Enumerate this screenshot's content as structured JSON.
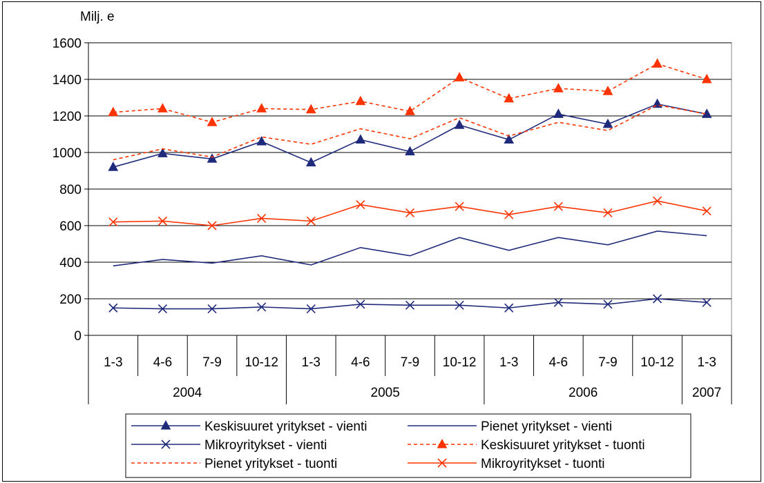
{
  "chart_data": {
    "type": "line",
    "ylabel": "Milj. e",
    "ylim": [
      0,
      1600
    ],
    "yticks": [
      0,
      200,
      400,
      600,
      800,
      1000,
      1200,
      1400,
      1600
    ],
    "categories": [
      "1-3",
      "4-6",
      "7-9",
      "10-12",
      "1-3",
      "4-6",
      "7-9",
      "10-12",
      "1-3",
      "4-6",
      "7-9",
      "10-12",
      "1-3"
    ],
    "year_groups": [
      {
        "label": "2004",
        "count": 4
      },
      {
        "label": "2005",
        "count": 4
      },
      {
        "label": "2006",
        "count": 4
      },
      {
        "label": "2007",
        "count": 1
      }
    ],
    "grid": true,
    "legend_position": "bottom",
    "series": [
      {
        "name": "Keskisuuret yritykset - vienti",
        "color": "#1f2a7a",
        "dash": "solid",
        "marker": "triangle",
        "values": [
          920,
          995,
          965,
          1060,
          945,
          1070,
          1005,
          1150,
          1070,
          1210,
          1155,
          1265,
          1210
        ]
      },
      {
        "name": "Pienet yritykset - vienti",
        "color": "#1f2a7a",
        "dash": "solid",
        "marker": "none",
        "values": [
          380,
          415,
          395,
          435,
          385,
          480,
          435,
          535,
          465,
          535,
          495,
          570,
          545
        ]
      },
      {
        "name": "Mikroyritykset - vienti",
        "color": "#1f2a7a",
        "dash": "solid",
        "marker": "x",
        "values": [
          150,
          145,
          145,
          155,
          145,
          170,
          165,
          165,
          150,
          180,
          170,
          200,
          180
        ]
      },
      {
        "name": "Keskisuuret yritykset - tuonti",
        "color": "#ff3300",
        "dash": "dash",
        "marker": "triangle",
        "values": [
          1220,
          1240,
          1165,
          1240,
          1235,
          1280,
          1225,
          1410,
          1295,
          1350,
          1335,
          1485,
          1400
        ]
      },
      {
        "name": "Pienet yritykset - tuonti",
        "color": "#ff3300",
        "dash": "dash",
        "marker": "none",
        "values": [
          960,
          1020,
          975,
          1085,
          1045,
          1130,
          1075,
          1190,
          1090,
          1165,
          1120,
          1260,
          1210
        ]
      },
      {
        "name": "Mikroyritykset - tuonti",
        "color": "#ff3300",
        "dash": "solid",
        "marker": "x",
        "values": [
          620,
          625,
          600,
          640,
          625,
          715,
          670,
          705,
          660,
          705,
          670,
          735,
          680
        ]
      }
    ]
  }
}
